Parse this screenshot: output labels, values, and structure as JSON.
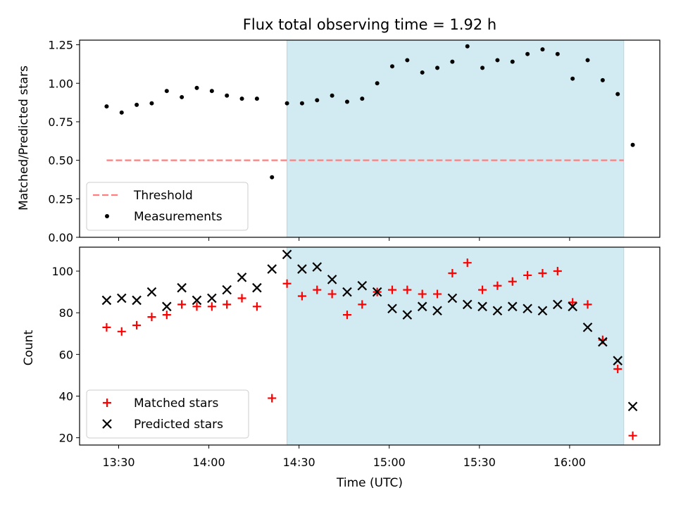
{
  "chart_data": [
    {
      "type": "scatter",
      "title": "Flux total observing time = 1.92 h",
      "ylabel": "Matched/Predicted stars",
      "xlabel": "",
      "ylim": [
        0,
        1.28
      ],
      "yticks": [
        "0.00",
        "0.25",
        "0.50",
        "0.75",
        "1.00",
        "1.25"
      ],
      "shaded_range": [
        "14:26",
        "16:18"
      ],
      "shade_color": "#add8e6",
      "threshold": {
        "name": "Threshold",
        "value": 0.5,
        "x_range": [
          "13:26",
          "16:18"
        ],
        "color": "#ff7f7f"
      },
      "series": [
        {
          "name": "Measurements",
          "color": "#000000",
          "marker": "dot",
          "points": [
            [
              "13:26",
              0.85
            ],
            [
              "13:31",
              0.81
            ],
            [
              "13:36",
              0.86
            ],
            [
              "13:41",
              0.87
            ],
            [
              "13:46",
              0.95
            ],
            [
              "13:51",
              0.91
            ],
            [
              "13:56",
              0.97
            ],
            [
              "14:01",
              0.95
            ],
            [
              "14:06",
              0.92
            ],
            [
              "14:11",
              0.9
            ],
            [
              "14:16",
              0.9
            ],
            [
              "14:21",
              0.39
            ],
            [
              "14:26",
              0.87
            ],
            [
              "14:31",
              0.87
            ],
            [
              "14:36",
              0.89
            ],
            [
              "14:41",
              0.92
            ],
            [
              "14:46",
              0.88
            ],
            [
              "14:51",
              0.9
            ],
            [
              "14:56",
              1.0
            ],
            [
              "15:01",
              1.11
            ],
            [
              "15:06",
              1.15
            ],
            [
              "15:11",
              1.07
            ],
            [
              "15:16",
              1.1
            ],
            [
              "15:21",
              1.14
            ],
            [
              "15:26",
              1.24
            ],
            [
              "15:31",
              1.1
            ],
            [
              "15:36",
              1.15
            ],
            [
              "15:41",
              1.14
            ],
            [
              "15:46",
              1.19
            ],
            [
              "15:51",
              1.22
            ],
            [
              "15:56",
              1.19
            ],
            [
              "16:01",
              1.03
            ],
            [
              "16:06",
              1.15
            ],
            [
              "16:11",
              1.02
            ],
            [
              "16:16",
              0.93
            ],
            [
              "16:21",
              0.6
            ]
          ]
        }
      ],
      "legend": {
        "position": "lower-left",
        "entries": [
          "Threshold",
          "Measurements"
        ]
      }
    },
    {
      "type": "scatter",
      "title": "",
      "ylabel": "Count",
      "xlabel": "Time (UTC)",
      "ylim": [
        16.5,
        111.5
      ],
      "yticks": [
        "20",
        "40",
        "60",
        "80",
        "100"
      ],
      "xticks": [
        "13:30",
        "14:00",
        "14:30",
        "15:00",
        "15:30",
        "16:00"
      ],
      "shaded_range": [
        "14:26",
        "16:18"
      ],
      "shade_color": "#add8e6",
      "series": [
        {
          "name": "Matched stars",
          "color": "#ff0000",
          "marker": "plus",
          "points": [
            [
              "13:26",
              73
            ],
            [
              "13:31",
              71
            ],
            [
              "13:36",
              74
            ],
            [
              "13:41",
              78
            ],
            [
              "13:46",
              79
            ],
            [
              "13:51",
              84
            ],
            [
              "13:56",
              83
            ],
            [
              "14:01",
              83
            ],
            [
              "14:06",
              84
            ],
            [
              "14:11",
              87
            ],
            [
              "14:16",
              83
            ],
            [
              "14:21",
              39
            ],
            [
              "14:26",
              94
            ],
            [
              "14:31",
              88
            ],
            [
              "14:36",
              91
            ],
            [
              "14:41",
              89
            ],
            [
              "14:46",
              79
            ],
            [
              "14:51",
              84
            ],
            [
              "14:56",
              90
            ],
            [
              "15:01",
              91
            ],
            [
              "15:06",
              91
            ],
            [
              "15:11",
              89
            ],
            [
              "15:16",
              89
            ],
            [
              "15:21",
              99
            ],
            [
              "15:26",
              104
            ],
            [
              "15:31",
              91
            ],
            [
              "15:36",
              93
            ],
            [
              "15:41",
              95
            ],
            [
              "15:46",
              98
            ],
            [
              "15:51",
              99
            ],
            [
              "15:56",
              100
            ],
            [
              "16:01",
              85
            ],
            [
              "16:06",
              84
            ],
            [
              "16:11",
              67
            ],
            [
              "16:16",
              53
            ],
            [
              "16:21",
              21
            ]
          ]
        },
        {
          "name": "Predicted stars",
          "color": "#000000",
          "marker": "x",
          "points": [
            [
              "13:26",
              86
            ],
            [
              "13:31",
              87
            ],
            [
              "13:36",
              86
            ],
            [
              "13:41",
              90
            ],
            [
              "13:46",
              83
            ],
            [
              "13:51",
              92
            ],
            [
              "13:56",
              86
            ],
            [
              "14:01",
              87
            ],
            [
              "14:06",
              91
            ],
            [
              "14:11",
              97
            ],
            [
              "14:16",
              92
            ],
            [
              "14:21",
              101
            ],
            [
              "14:26",
              108
            ],
            [
              "14:31",
              101
            ],
            [
              "14:36",
              102
            ],
            [
              "14:41",
              96
            ],
            [
              "14:46",
              90
            ],
            [
              "14:51",
              93
            ],
            [
              "14:56",
              90
            ],
            [
              "15:01",
              82
            ],
            [
              "15:06",
              79
            ],
            [
              "15:11",
              83
            ],
            [
              "15:16",
              81
            ],
            [
              "15:21",
              87
            ],
            [
              "15:26",
              84
            ],
            [
              "15:31",
              83
            ],
            [
              "15:36",
              81
            ],
            [
              "15:41",
              83
            ],
            [
              "15:46",
              82
            ],
            [
              "15:51",
              81
            ],
            [
              "15:56",
              84
            ],
            [
              "16:01",
              83
            ],
            [
              "16:06",
              73
            ],
            [
              "16:11",
              66
            ],
            [
              "16:16",
              57
            ],
            [
              "16:21",
              35
            ]
          ]
        }
      ],
      "legend": {
        "position": "lower-left",
        "entries": [
          "Matched stars",
          "Predicted stars"
        ]
      }
    }
  ]
}
